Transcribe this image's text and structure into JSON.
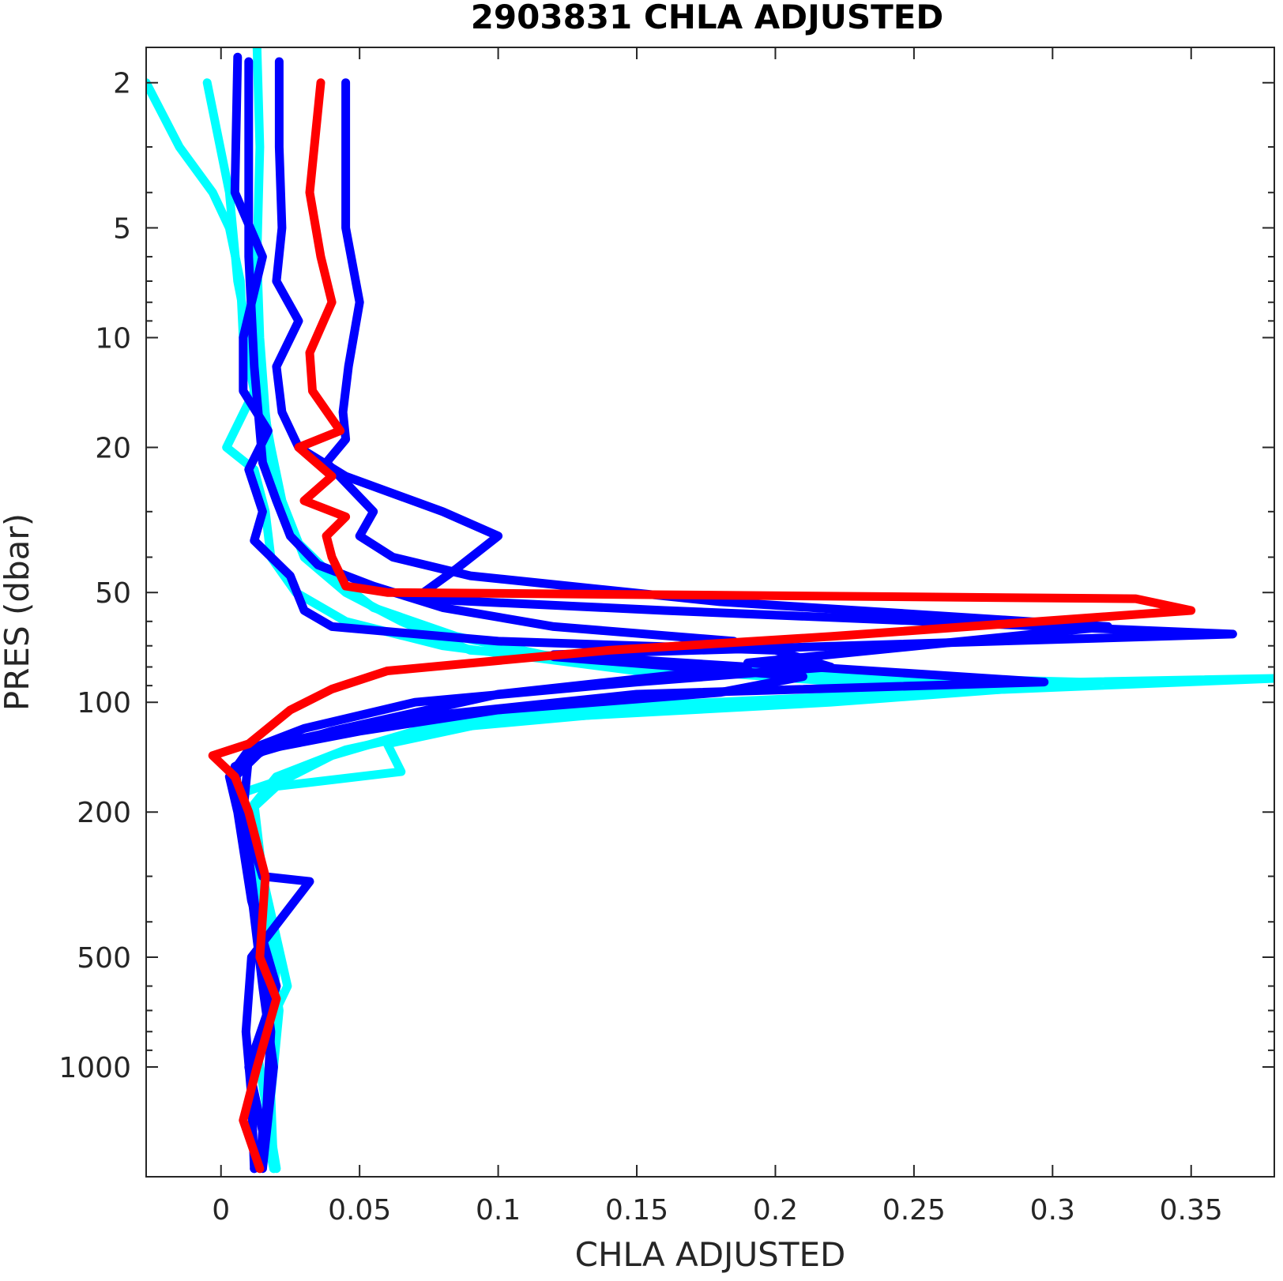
{
  "chart_data": {
    "type": "line",
    "title": "2903831  CHLA ADJUSTED",
    "xlabel": "CHLA ADJUSTED",
    "ylabel": "PRES (dbar)",
    "xlim": [
      -0.027,
      0.38
    ],
    "ylim": [
      1.6,
      2000
    ],
    "yscale": "log",
    "y_reversed": true,
    "grid": false,
    "box": true,
    "x_ticks": [
      0,
      0.05,
      0.1,
      0.15,
      0.2,
      0.25,
      0.3,
      0.35
    ],
    "x_tick_labels": [
      "0",
      "0.05",
      "0.1",
      "0.15",
      "0.2",
      "0.25",
      "0.3",
      "0.35"
    ],
    "y_ticks": [
      2,
      5,
      10,
      20,
      50,
      100,
      200,
      500,
      1000
    ],
    "y_tick_labels": [
      "2",
      "5",
      "10",
      "20",
      "50",
      "100",
      "200",
      "500",
      "1000"
    ],
    "series": [
      {
        "color": "#00ffff",
        "points": [
          [
            -0.027,
            2
          ],
          [
            -0.015,
            3
          ],
          [
            -0.003,
            4
          ],
          [
            0.003,
            5
          ],
          [
            0.007,
            7
          ],
          [
            0.008,
            10
          ],
          [
            0.012,
            14
          ],
          [
            0.002,
            20
          ],
          [
            0.012,
            23
          ],
          [
            0.016,
            30
          ],
          [
            0.018,
            40
          ],
          [
            0.027,
            50
          ],
          [
            0.045,
            60
          ],
          [
            0.08,
            70
          ],
          [
            0.15,
            82
          ],
          [
            0.31,
            88
          ],
          [
            0.38,
            86
          ],
          [
            0.24,
            95
          ],
          [
            0.12,
            105
          ],
          [
            0.07,
            120
          ],
          [
            0.04,
            140
          ],
          [
            0.025,
            160
          ],
          [
            0.005,
            180
          ],
          [
            0.012,
            200
          ],
          [
            0.014,
            300
          ],
          [
            0.02,
            500
          ],
          [
            0.018,
            1000
          ],
          [
            0.016,
            1500
          ],
          [
            0.019,
            1900
          ]
        ]
      },
      {
        "color": "#00ffff",
        "points": [
          [
            -0.005,
            2
          ],
          [
            0.003,
            4
          ],
          [
            0.006,
            7
          ],
          [
            0.01,
            10
          ],
          [
            0.015,
            15
          ],
          [
            0.018,
            20
          ],
          [
            0.022,
            28
          ],
          [
            0.03,
            40
          ],
          [
            0.045,
            50
          ],
          [
            0.065,
            60
          ],
          [
            0.09,
            72
          ],
          [
            0.18,
            80
          ],
          [
            0.3,
            90
          ],
          [
            0.22,
            100
          ],
          [
            0.1,
            112
          ],
          [
            0.06,
            130
          ],
          [
            0.065,
            155
          ],
          [
            0.02,
            170
          ],
          [
            0.01,
            200
          ],
          [
            0.016,
            400
          ],
          [
            0.021,
            700
          ],
          [
            0.018,
            1200
          ],
          [
            0.019,
            1900
          ]
        ]
      },
      {
        "color": "#00ffff",
        "points": [
          [
            0.013,
            1.6
          ],
          [
            0.014,
            3
          ],
          [
            0.013,
            6
          ],
          [
            0.014,
            10
          ],
          [
            0.016,
            16
          ],
          [
            0.018,
            22
          ],
          [
            0.02,
            28
          ],
          [
            0.027,
            36
          ],
          [
            0.04,
            45
          ],
          [
            0.055,
            55
          ],
          [
            0.085,
            66
          ],
          [
            0.13,
            78
          ],
          [
            0.26,
            92
          ],
          [
            0.16,
            104
          ],
          [
            0.08,
            118
          ],
          [
            0.045,
            135
          ],
          [
            0.02,
            160
          ],
          [
            0.012,
            190
          ],
          [
            0.015,
            300
          ],
          [
            0.024,
            600
          ],
          [
            0.013,
            900
          ],
          [
            0.02,
            1900
          ]
        ]
      },
      {
        "color": "#0000ff",
        "points": [
          [
            0.01,
            1.75
          ],
          [
            0.01,
            6
          ],
          [
            0.012,
            12
          ],
          [
            0.014,
            18
          ],
          [
            0.015,
            22
          ],
          [
            0.02,
            28
          ],
          [
            0.025,
            35
          ],
          [
            0.035,
            42
          ],
          [
            0.055,
            48
          ],
          [
            0.08,
            55
          ],
          [
            0.12,
            62
          ],
          [
            0.185,
            68
          ],
          [
            0.12,
            75
          ],
          [
            0.21,
            85
          ],
          [
            0.18,
            94
          ],
          [
            0.1,
            105
          ],
          [
            0.05,
            120
          ],
          [
            0.015,
            135
          ],
          [
            0.005,
            160
          ],
          [
            0.008,
            200
          ],
          [
            0.015,
            300
          ],
          [
            0.032,
            310
          ],
          [
            0.011,
            500
          ],
          [
            0.009,
            800
          ],
          [
            0.011,
            1200
          ],
          [
            0.012,
            1900
          ]
        ]
      },
      {
        "color": "#0000ff",
        "points": [
          [
            0.021,
            1.75
          ],
          [
            0.021,
            3
          ],
          [
            0.022,
            5
          ],
          [
            0.02,
            7
          ],
          [
            0.028,
            9
          ],
          [
            0.02,
            12
          ],
          [
            0.022,
            16
          ],
          [
            0.028,
            20
          ],
          [
            0.045,
            24
          ],
          [
            0.08,
            30
          ],
          [
            0.1,
            35
          ],
          [
            0.085,
            43
          ],
          [
            0.07,
            52
          ],
          [
            0.16,
            56
          ],
          [
            0.365,
            65
          ],
          [
            0.12,
            74
          ],
          [
            0.19,
            80
          ],
          [
            0.1,
            95
          ],
          [
            0.04,
            120
          ],
          [
            0.01,
            140
          ],
          [
            0.008,
            200
          ],
          [
            0.013,
            400
          ],
          [
            0.018,
            800
          ],
          [
            0.016,
            1500
          ],
          [
            0.012,
            1900
          ]
        ]
      },
      {
        "color": "#0000ff",
        "points": [
          [
            0.045,
            2
          ],
          [
            0.045,
            5
          ],
          [
            0.05,
            8
          ],
          [
            0.046,
            12
          ],
          [
            0.044,
            16
          ],
          [
            0.045,
            19
          ],
          [
            0.038,
            22
          ],
          [
            0.045,
            25
          ],
          [
            0.055,
            30
          ],
          [
            0.05,
            35
          ],
          [
            0.062,
            40
          ],
          [
            0.09,
            45
          ],
          [
            0.18,
            53
          ],
          [
            0.32,
            62
          ],
          [
            0.19,
            78
          ],
          [
            0.297,
            88
          ],
          [
            0.15,
            95
          ],
          [
            0.06,
            112
          ],
          [
            0.02,
            130
          ],
          [
            0.005,
            150
          ],
          [
            0.009,
            250
          ],
          [
            0.015,
            600
          ],
          [
            0.019,
            1000
          ],
          [
            0.015,
            1900
          ]
        ]
      },
      {
        "color": "#0000ff",
        "points": [
          [
            0.006,
            1.7
          ],
          [
            0.005,
            4
          ],
          [
            0.015,
            6
          ],
          [
            0.008,
            10
          ],
          [
            0.008,
            14
          ],
          [
            0.017,
            18
          ],
          [
            0.01,
            23
          ],
          [
            0.015,
            30
          ],
          [
            0.012,
            36
          ],
          [
            0.025,
            45
          ],
          [
            0.03,
            56
          ],
          [
            0.04,
            62
          ],
          [
            0.1,
            68
          ],
          [
            0.2,
            72
          ],
          [
            0.22,
            80
          ],
          [
            0.15,
            88
          ],
          [
            0.07,
            100
          ],
          [
            0.03,
            118
          ],
          [
            0.01,
            135
          ],
          [
            0.003,
            160
          ],
          [
            0.006,
            200
          ],
          [
            0.011,
            350
          ],
          [
            0.02,
            600
          ],
          [
            0.01,
            1000
          ],
          [
            0.015,
            1500
          ],
          [
            0.014,
            1900
          ]
        ]
      },
      {
        "color": "#ff0000",
        "points": [
          [
            0.036,
            2
          ],
          [
            0.032,
            4
          ],
          [
            0.036,
            6
          ],
          [
            0.04,
            8
          ],
          [
            0.032,
            11
          ],
          [
            0.033,
            14
          ],
          [
            0.043,
            18
          ],
          [
            0.028,
            20
          ],
          [
            0.04,
            24
          ],
          [
            0.03,
            28
          ],
          [
            0.045,
            31
          ],
          [
            0.038,
            35
          ],
          [
            0.04,
            40
          ],
          [
            0.045,
            48
          ],
          [
            0.06,
            50
          ],
          [
            0.33,
            52
          ],
          [
            0.35,
            56
          ],
          [
            0.22,
            66
          ],
          [
            0.14,
            72
          ],
          [
            0.06,
            82
          ],
          [
            0.04,
            92
          ],
          [
            0.025,
            105
          ],
          [
            0.01,
            130
          ],
          [
            -0.003,
            140
          ],
          [
            0.005,
            160
          ],
          [
            0.01,
            200
          ],
          [
            0.016,
            300
          ],
          [
            0.014,
            500
          ],
          [
            0.02,
            650
          ],
          [
            0.013,
            1000
          ],
          [
            0.008,
            1400
          ],
          [
            0.014,
            1900
          ]
        ]
      }
    ]
  }
}
